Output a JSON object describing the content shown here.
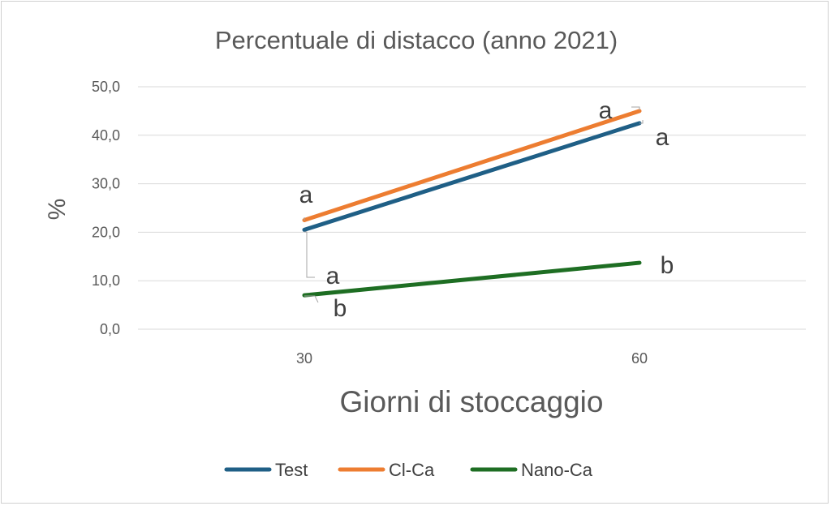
{
  "chart_data": {
    "type": "line",
    "title": "Percentuale di distacco (anno 2021)",
    "xlabel": "Giorni di stoccaggio",
    "ylabel": "%",
    "categories": [
      "30",
      "60"
    ],
    "ylim": [
      0,
      50
    ],
    "yticks": [
      "0,0",
      "10,0",
      "20,0",
      "30,0",
      "40,0",
      "50,0"
    ],
    "grid": true,
    "legend_position": "bottom",
    "series": [
      {
        "name": "Test",
        "values": [
          20.5,
          42.5
        ],
        "color": "#1f5f86",
        "labels": [
          "a",
          "a"
        ]
      },
      {
        "name": "Cl-Ca",
        "values": [
          22.5,
          45.0
        ],
        "color": "#ed7d31",
        "labels": [
          "a",
          "a"
        ]
      },
      {
        "name": "Nano-Ca",
        "values": [
          7.0,
          13.7
        ],
        "color": "#1e6e23",
        "labels": [
          "b",
          "b"
        ]
      }
    ]
  }
}
